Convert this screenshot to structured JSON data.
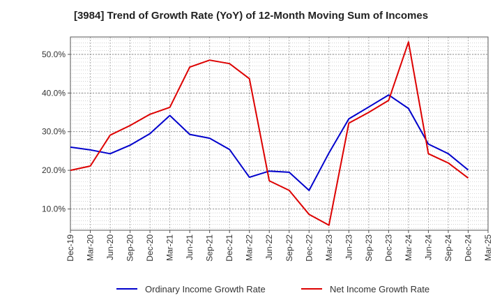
{
  "chart_data": {
    "type": "line",
    "title": "[3984]  Trend of Growth Rate (YoY) of 12-Month Moving Sum of Incomes",
    "categories": [
      "Dec-19",
      "Mar-20",
      "Jun-20",
      "Sep-20",
      "Dec-20",
      "Mar-21",
      "Jun-21",
      "Sep-21",
      "Dec-21",
      "Mar-22",
      "Jun-22",
      "Sep-22",
      "Dec-22",
      "Mar-23",
      "Jun-23",
      "Sep-23",
      "Dec-23",
      "Mar-24",
      "Jun-24",
      "Sep-24",
      "Dec-24",
      "Mar-25"
    ],
    "y_ticks": [
      10,
      20,
      30,
      40,
      50
    ],
    "y_tick_labels": [
      "10.0%",
      "20.0%",
      "30.0%",
      "40.0%",
      "50.0%"
    ],
    "ylim": [
      4.5,
      54.5
    ],
    "grid": true,
    "legend_position": "bottom",
    "series": [
      {
        "name": "Ordinary Income Growth Rate",
        "color": "#0000cc",
        "values": [
          26.0,
          25.3,
          24.3,
          26.5,
          29.5,
          34.2,
          29.3,
          28.3,
          25.4,
          18.2,
          19.8,
          19.5,
          14.8,
          24.5,
          33.3,
          36.4,
          39.5,
          36.0,
          26.8,
          24.3,
          20.1,
          null
        ]
      },
      {
        "name": "Net Income Growth Rate",
        "color": "#dd0000",
        "values": [
          20.0,
          21.1,
          29.1,
          31.6,
          34.5,
          36.3,
          46.7,
          48.5,
          47.6,
          43.7,
          17.3,
          14.8,
          8.6,
          5.8,
          32.2,
          35.0,
          38.1,
          53.2,
          24.3,
          21.9,
          18.0,
          null
        ]
      }
    ]
  }
}
